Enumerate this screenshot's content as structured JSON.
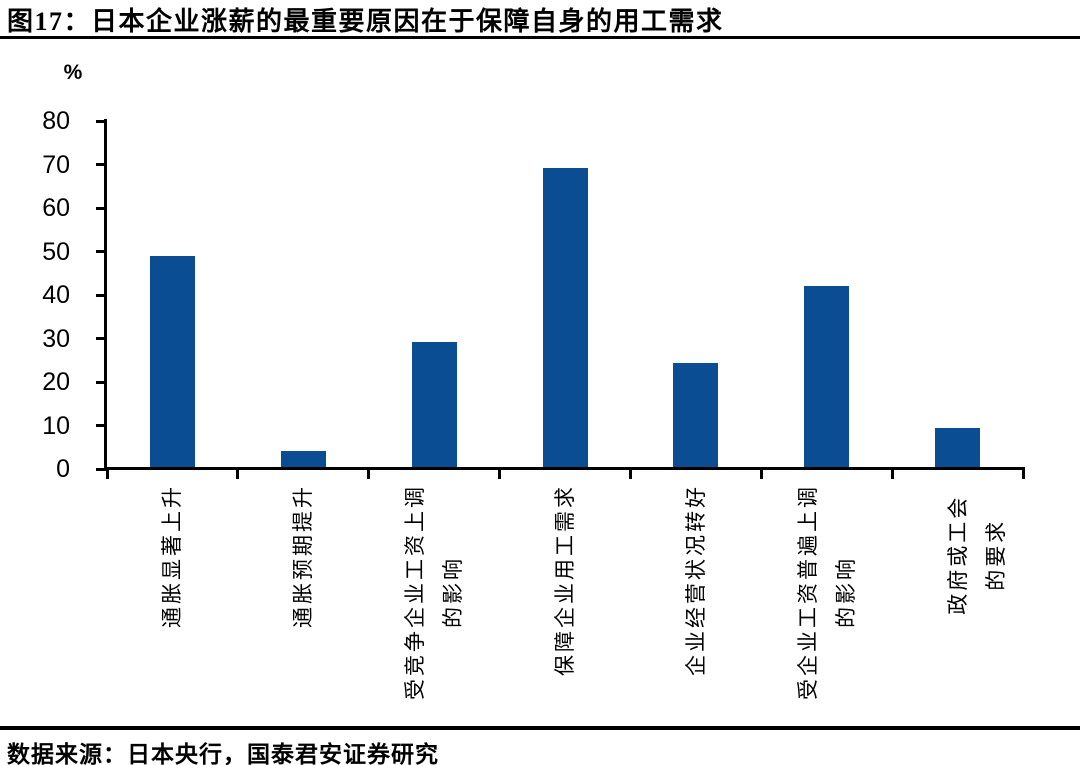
{
  "figure": {
    "title": "图17：日本企业涨薪的最重要原因在于保障自身的用工需求",
    "unit_label": "%",
    "source": "数据来源：日本央行，国泰君安证券研究"
  },
  "colors": {
    "bar": "#0B4D93",
    "axis": "#000000",
    "background": "#FFFFFF"
  },
  "chart_data": {
    "type": "bar",
    "title": "日本企业涨薪的最重要原因在于保障自身的用工需求",
    "categories": [
      "通胀显著上升",
      "通胀预期提升",
      "受竞争企业工资上调\n的影响",
      "保障企业用工需求",
      "企业经营状况转好",
      "受企业工资普遍上调\n的影响",
      "政府或工会的要求"
    ],
    "values": [
      49,
      4.2,
      29.3,
      69.3,
      24.3,
      42.1,
      9.4
    ],
    "xlabel": "",
    "ylabel": "%",
    "ylim": [
      0,
      80
    ],
    "yticks": [
      0,
      10,
      20,
      30,
      40,
      50,
      60,
      70,
      80
    ],
    "grid": false,
    "legend": "none",
    "bar_color": "#0B4D93"
  }
}
